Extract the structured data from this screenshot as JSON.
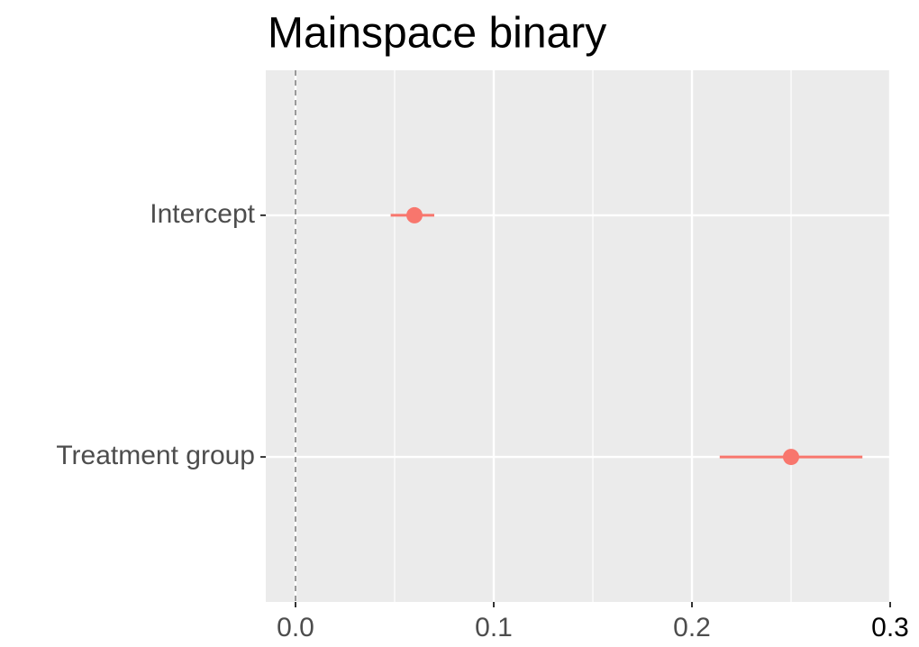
{
  "chart_data": {
    "type": "coefficient",
    "title": "Mainspace binary",
    "categories": [
      "Intercept",
      "Treatment group"
    ],
    "series": [
      {
        "values": [
          0.06,
          0.25
        ],
        "lower": [
          0.048,
          0.214
        ],
        "upper": [
          0.07,
          0.286
        ],
        "color": "#F8766D"
      }
    ],
    "xlim": [
      -0.015,
      0.3
    ],
    "xticks": [
      {
        "value": 0,
        "label": "0.0"
      },
      0.1,
      0.2,
      0.3
    ],
    "minor_xticks": [
      0.05,
      0.15,
      0.25
    ],
    "reference_line": 0,
    "grid": true
  }
}
